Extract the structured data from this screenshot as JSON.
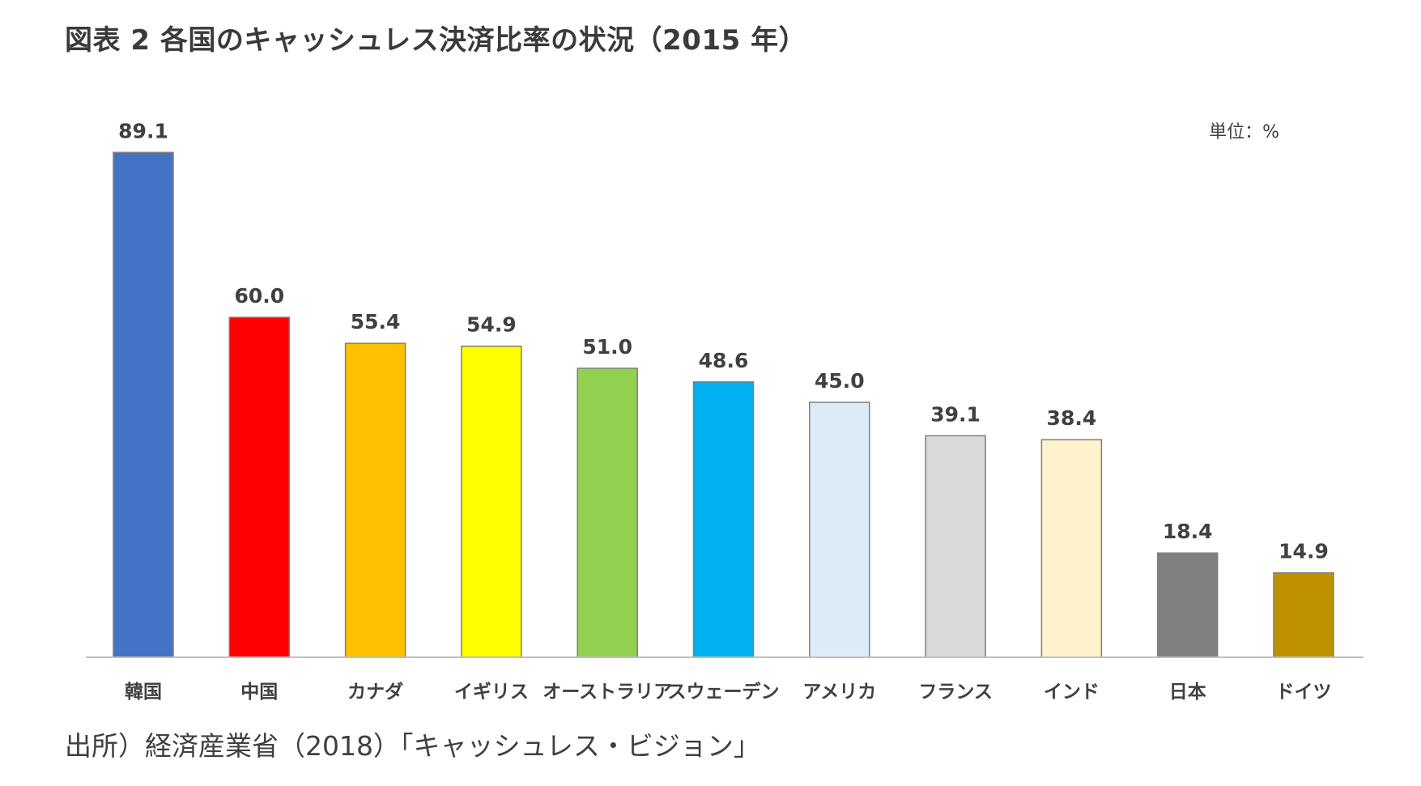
{
  "title": "図表 2 各国のキャッシュレス決済比率の状況（2015 年）",
  "unit": "単位：%",
  "source": "出所）経済産業省（2018）「キャッシュレス・ビジョン」",
  "chart_data": {
    "type": "bar",
    "title": "図表 2 各国のキャッシュレス決済比率の状況（2015 年）",
    "xlabel": "",
    "ylabel": "",
    "unit": "単位：%",
    "categories": [
      "韓国",
      "中国",
      "カナダ",
      "イギリス",
      "オーストラリア",
      "スウェーデン",
      "アメリカ",
      "フランス",
      "インド",
      "日本",
      "ドイツ"
    ],
    "values": [
      89.1,
      60.0,
      55.4,
      54.9,
      51.0,
      48.6,
      45.0,
      39.1,
      38.4,
      18.4,
      14.9
    ],
    "value_labels": [
      "89.1",
      "60.0",
      "55.4",
      "54.9",
      "51.0",
      "48.6",
      "45.0",
      "39.1",
      "38.4",
      "18.4",
      "14.9"
    ],
    "colors": [
      "#4472C4",
      "#FF0000",
      "#FFC000",
      "#FFFF00",
      "#92D050",
      "#00B0F0",
      "#DDEBF7",
      "#D9D9D9",
      "#FFF2CC",
      "#808080",
      "#BF9000"
    ],
    "ylim": [
      0,
      100
    ],
    "grid": false,
    "legend": "none"
  }
}
